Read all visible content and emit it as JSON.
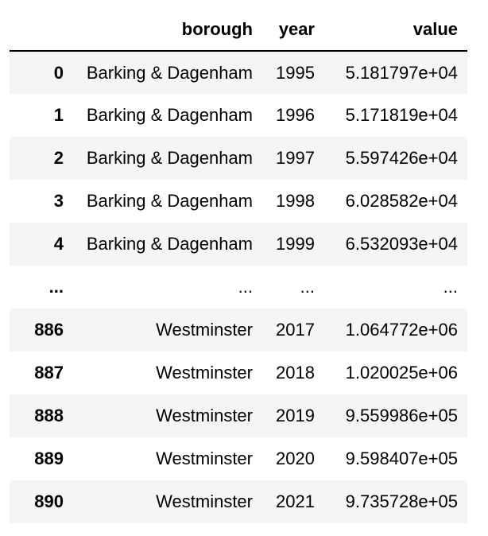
{
  "table": {
    "columns": {
      "index": "",
      "borough": "borough",
      "year": "year",
      "value": "value"
    },
    "rows": [
      {
        "index": "0",
        "borough": "Barking & Dagenham",
        "year": "1995",
        "value": "5.181797e+04"
      },
      {
        "index": "1",
        "borough": "Barking & Dagenham",
        "year": "1996",
        "value": "5.171819e+04"
      },
      {
        "index": "2",
        "borough": "Barking & Dagenham",
        "year": "1997",
        "value": "5.597426e+04"
      },
      {
        "index": "3",
        "borough": "Barking & Dagenham",
        "year": "1998",
        "value": "6.028582e+04"
      },
      {
        "index": "4",
        "borough": "Barking & Dagenham",
        "year": "1999",
        "value": "6.532093e+04"
      },
      {
        "index": "...",
        "borough": "...",
        "year": "...",
        "value": "..."
      },
      {
        "index": "886",
        "borough": "Westminster",
        "year": "2017",
        "value": "1.064772e+06"
      },
      {
        "index": "887",
        "borough": "Westminster",
        "year": "2018",
        "value": "1.020025e+06"
      },
      {
        "index": "888",
        "borough": "Westminster",
        "year": "2019",
        "value": "9.559986e+05"
      },
      {
        "index": "889",
        "borough": "Westminster",
        "year": "2020",
        "value": "9.598407e+05"
      },
      {
        "index": "890",
        "borough": "Westminster",
        "year": "2021",
        "value": "9.735728e+05"
      }
    ]
  }
}
